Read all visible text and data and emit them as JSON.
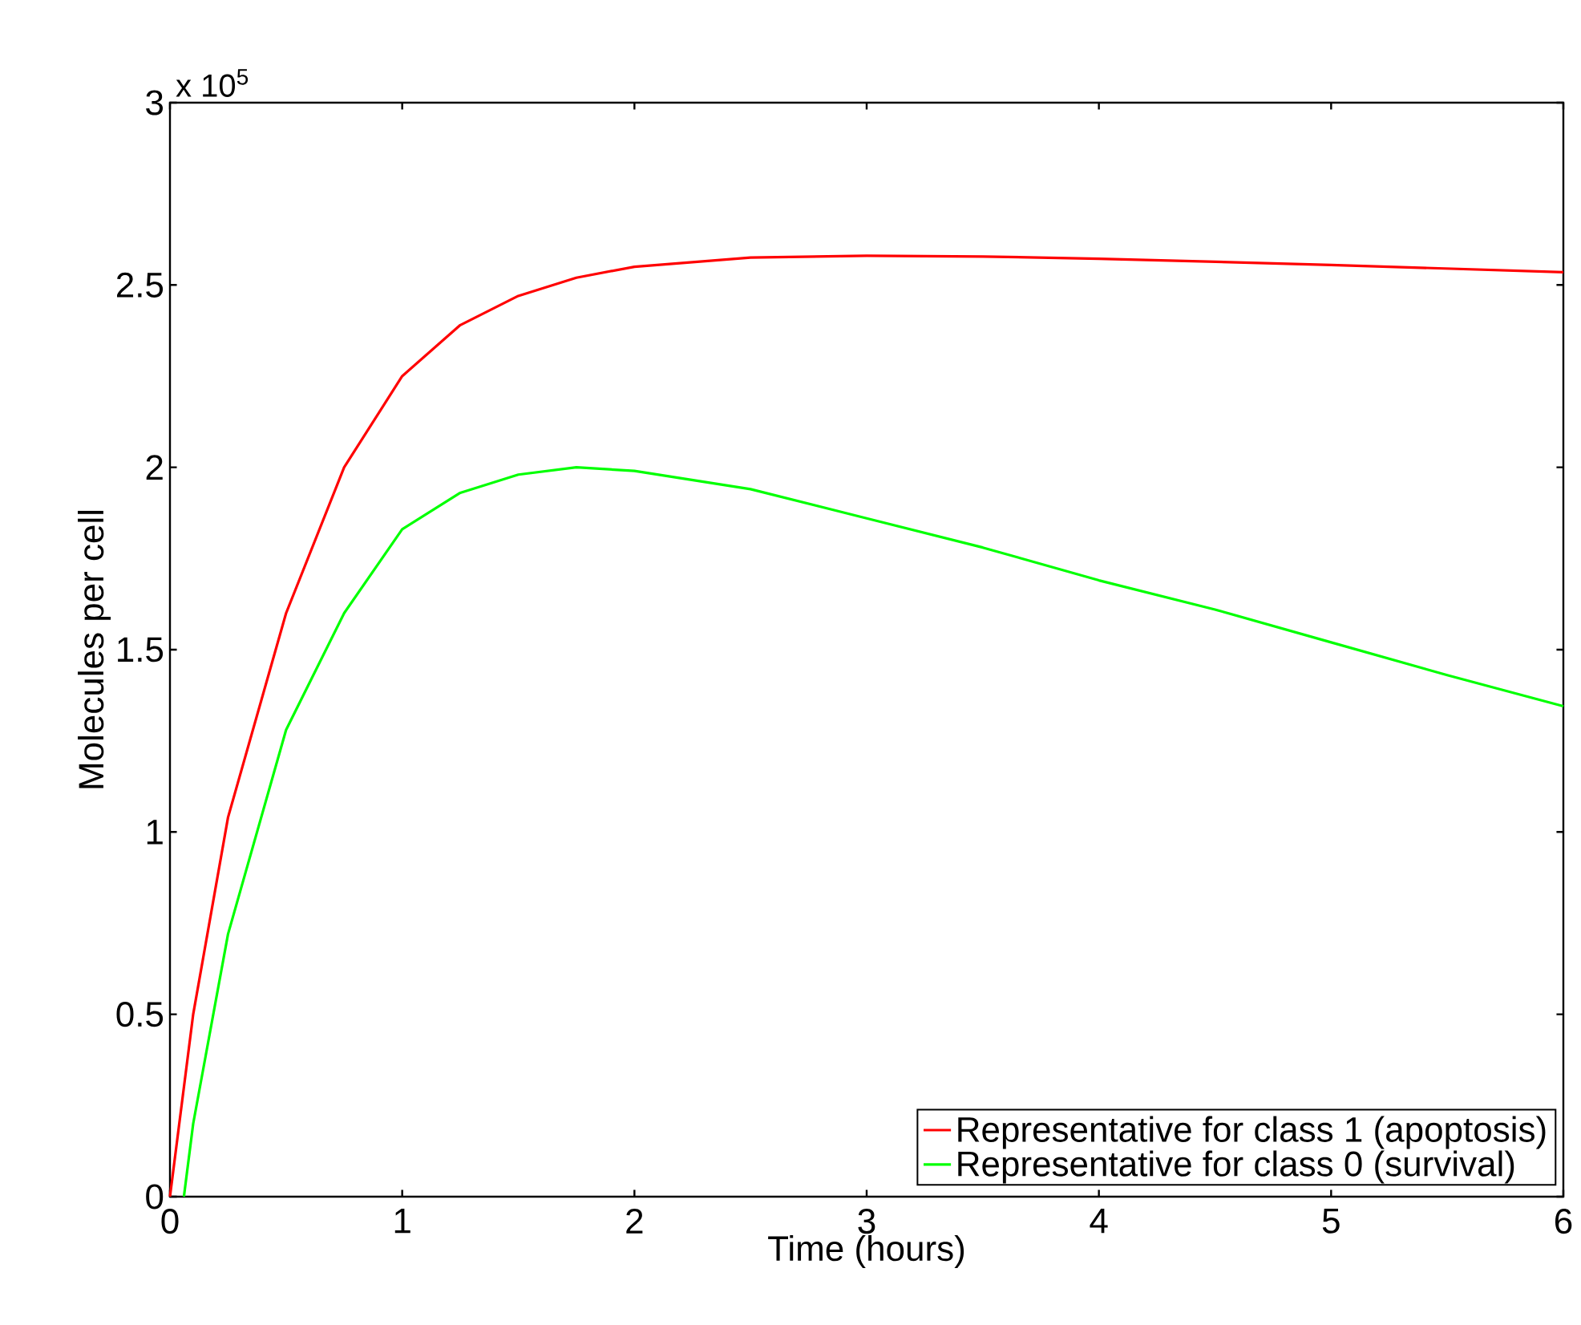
{
  "chart_data": {
    "type": "line",
    "xlabel": "Time (hours)",
    "ylabel": "Molecules per cell",
    "annotations": [
      "x 10$^{5}$"
    ],
    "series": [
      {
        "name": "Representative for class 1 (apoptosis)",
        "color": "#ff0000",
        "x": [
          0,
          0.1,
          0.25,
          0.5,
          0.75,
          1,
          1.25,
          1.5,
          1.75,
          2,
          2.5,
          3,
          3.5,
          4,
          5,
          6
        ],
        "values": [
          0,
          0.5,
          1.04,
          1.6,
          2.0,
          2.25,
          2.39,
          2.47,
          2.52,
          2.55,
          2.575,
          2.58,
          2.578,
          2.572,
          2.555,
          2.535
        ]
      },
      {
        "name": "Representative for class 0 (survival)",
        "color": "#00ff00",
        "x": [
          0.06,
          0.1,
          0.25,
          0.5,
          0.75,
          1,
          1.25,
          1.5,
          1.75,
          2,
          2.5,
          3,
          3.5,
          4,
          4.5,
          5,
          5.5,
          6
        ],
        "values": [
          0,
          0.2,
          0.72,
          1.28,
          1.6,
          1.83,
          1.93,
          1.98,
          2.0,
          1.99,
          1.94,
          1.86,
          1.78,
          1.69,
          1.61,
          1.52,
          1.43,
          1.345
        ]
      }
    ],
    "xlim": [
      0,
      6
    ],
    "xticks": [
      0,
      1,
      2,
      3,
      4,
      5,
      6
    ],
    "ylim": [
      0,
      3
    ],
    "yticks": [
      0,
      0.5,
      1,
      1.5,
      2,
      2.5,
      3
    ],
    "legend": "bottom right",
    "marker": "none",
    "line_style": "solid",
    "grid": false
  }
}
